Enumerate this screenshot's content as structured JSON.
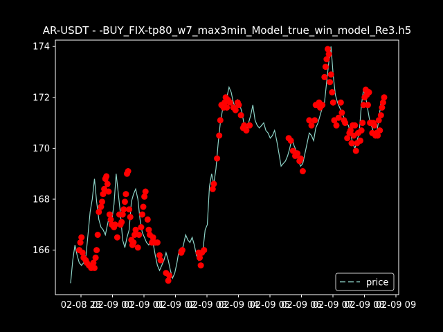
{
  "chart_data": {
    "type": "line",
    "title": "AR-USDT - -BUY_FIX-tp80_w7_max3min_Model_true_win_model_Re3.h5",
    "xlabel": "",
    "ylabel": "",
    "x_tick_labels": [
      "02-08 23",
      "02-09 00",
      "02-09 01",
      "02-09 02",
      "02-09 03",
      "02-09 04",
      "02-09 05",
      "02-09 06",
      "02-09 07",
      "02-09 08",
      "02-09 09"
    ],
    "y_ticks": [
      166,
      168,
      170,
      172,
      174
    ],
    "ylim": [
      164.25,
      174.25
    ],
    "xlim": [
      0,
      1000
    ],
    "grid": false,
    "legend": {
      "position": "lower-right",
      "entries": [
        "price"
      ]
    },
    "colors": {
      "line": "#8dd3c7",
      "markers": "#ff0000",
      "background": "#000000",
      "axes": "#ffffff"
    },
    "series": [
      {
        "name": "price",
        "points": [
          [
            0,
            164.7
          ],
          [
            4,
            165.6
          ],
          [
            8,
            166.2
          ],
          [
            12,
            165.8
          ],
          [
            16,
            165.5
          ],
          [
            20,
            165.4
          ],
          [
            24,
            165.5
          ],
          [
            28,
            165.7
          ],
          [
            32,
            166.6
          ],
          [
            36,
            167.5
          ],
          [
            40,
            168.0
          ],
          [
            44,
            168.8
          ],
          [
            48,
            167.9
          ],
          [
            52,
            167.2
          ],
          [
            56,
            166.9
          ],
          [
            60,
            166.8
          ],
          [
            64,
            166.6
          ],
          [
            68,
            167.0
          ],
          [
            72,
            167.4
          ],
          [
            76,
            167.2
          ],
          [
            80,
            167.8
          ],
          [
            84,
            169.0
          ],
          [
            88,
            168.2
          ],
          [
            92,
            167.4
          ],
          [
            96,
            166.4
          ],
          [
            100,
            166.1
          ],
          [
            104,
            166.5
          ],
          [
            108,
            166.8
          ],
          [
            112,
            167.9
          ],
          [
            116,
            168.2
          ],
          [
            120,
            168.4
          ],
          [
            124,
            168.0
          ],
          [
            128,
            167.2
          ],
          [
            132,
            166.7
          ],
          [
            136,
            166.5
          ],
          [
            140,
            166.3
          ],
          [
            144,
            166.2
          ],
          [
            148,
            166.4
          ],
          [
            152,
            166.3
          ],
          [
            156,
            165.8
          ],
          [
            160,
            165.4
          ],
          [
            164,
            165.2
          ],
          [
            168,
            165.4
          ],
          [
            172,
            165.6
          ],
          [
            176,
            165.9
          ],
          [
            180,
            165.6
          ],
          [
            184,
            165.2
          ],
          [
            188,
            164.9
          ],
          [
            192,
            165.1
          ],
          [
            196,
            165.5
          ],
          [
            200,
            166.0
          ],
          [
            204,
            165.9
          ],
          [
            208,
            166.2
          ],
          [
            212,
            166.6
          ],
          [
            216,
            166.4
          ],
          [
            220,
            166.3
          ],
          [
            224,
            166.5
          ],
          [
            228,
            166.2
          ],
          [
            232,
            165.8
          ],
          [
            236,
            165.6
          ],
          [
            240,
            165.8
          ],
          [
            244,
            166.0
          ],
          [
            248,
            166.8
          ],
          [
            252,
            167.0
          ],
          [
            256,
            168.5
          ],
          [
            260,
            169.0
          ],
          [
            264,
            168.6
          ],
          [
            268,
            169.2
          ],
          [
            272,
            170.2
          ],
          [
            276,
            171.0
          ],
          [
            280,
            171.5
          ],
          [
            284,
            171.8
          ],
          [
            288,
            172.0
          ],
          [
            292,
            172.4
          ],
          [
            296,
            172.2
          ],
          [
            300,
            171.8
          ],
          [
            304,
            171.6
          ],
          [
            308,
            171.9
          ],
          [
            312,
            171.7
          ],
          [
            316,
            171.4
          ],
          [
            320,
            170.9
          ],
          [
            324,
            170.7
          ],
          [
            328,
            171.0
          ],
          [
            332,
            171.3
          ],
          [
            336,
            171.7
          ],
          [
            340,
            171.1
          ],
          [
            344,
            170.9
          ],
          [
            348,
            170.8
          ],
          [
            352,
            170.9
          ],
          [
            356,
            171.0
          ],
          [
            360,
            170.7
          ],
          [
            364,
            170.6
          ],
          [
            368,
            170.4
          ],
          [
            372,
            170.5
          ],
          [
            376,
            170.7
          ],
          [
            380,
            170.3
          ],
          [
            384,
            169.8
          ],
          [
            388,
            169.3
          ],
          [
            392,
            169.4
          ],
          [
            396,
            169.5
          ],
          [
            400,
            169.7
          ],
          [
            404,
            170.0
          ],
          [
            408,
            170.4
          ],
          [
            412,
            170.1
          ],
          [
            416,
            169.9
          ],
          [
            420,
            169.5
          ],
          [
            424,
            169.3
          ],
          [
            428,
            169.4
          ],
          [
            432,
            169.8
          ],
          [
            436,
            170.2
          ],
          [
            440,
            170.6
          ],
          [
            444,
            170.5
          ],
          [
            448,
            170.3
          ],
          [
            452,
            170.8
          ],
          [
            456,
            171.0
          ],
          [
            460,
            171.3
          ],
          [
            464,
            171.6
          ],
          [
            468,
            171.8
          ],
          [
            472,
            172.6
          ],
          [
            476,
            173.4
          ],
          [
            480,
            174.0
          ],
          [
            484,
            172.9
          ],
          [
            488,
            172.1
          ],
          [
            492,
            171.8
          ],
          [
            496,
            171.6
          ],
          [
            500,
            171.4
          ],
          [
            504,
            171.2
          ],
          [
            508,
            171.0
          ],
          [
            512,
            170.9
          ],
          [
            516,
            170.6
          ],
          [
            520,
            170.2
          ],
          [
            524,
            170.0
          ],
          [
            528,
            170.3
          ],
          [
            532,
            170.6
          ],
          [
            536,
            171.7
          ],
          [
            540,
            172.3
          ],
          [
            544,
            172.0
          ],
          [
            548,
            171.5
          ],
          [
            552,
            171.0
          ],
          [
            556,
            170.8
          ],
          [
            560,
            170.5
          ],
          [
            564,
            170.6
          ],
          [
            568,
            171.1
          ],
          [
            572,
            171.8
          ],
          [
            576,
            172.0
          ]
        ],
        "markers": [
          [
            16,
            166.0
          ],
          [
            18,
            166.3
          ],
          [
            20,
            166.5
          ],
          [
            22,
            165.9
          ],
          [
            24,
            165.7
          ],
          [
            28,
            165.6
          ],
          [
            30,
            165.5
          ],
          [
            34,
            165.4
          ],
          [
            38,
            165.3
          ],
          [
            42,
            165.5
          ],
          [
            44,
            165.3
          ],
          [
            46,
            165.7
          ],
          [
            48,
            166.0
          ],
          [
            50,
            166.6
          ],
          [
            52,
            167.5
          ],
          [
            56,
            167.7
          ],
          [
            58,
            167.9
          ],
          [
            60,
            168.2
          ],
          [
            62,
            168.4
          ],
          [
            64,
            168.8
          ],
          [
            66,
            168.9
          ],
          [
            68,
            168.6
          ],
          [
            70,
            168.3
          ],
          [
            72,
            167.4
          ],
          [
            74,
            167.2
          ],
          [
            76,
            167.0
          ],
          [
            80,
            166.9
          ],
          [
            82,
            167.0
          ],
          [
            86,
            166.5
          ],
          [
            90,
            167.4
          ],
          [
            92,
            167.0
          ],
          [
            94,
            167.1
          ],
          [
            96,
            167.4
          ],
          [
            98,
            167.6
          ],
          [
            100,
            167.9
          ],
          [
            102,
            168.2
          ],
          [
            104,
            169.0
          ],
          [
            106,
            169.1
          ],
          [
            108,
            167.6
          ],
          [
            110,
            167.3
          ],
          [
            112,
            166.4
          ],
          [
            114,
            166.2
          ],
          [
            116,
            166.3
          ],
          [
            118,
            166.6
          ],
          [
            120,
            166.8
          ],
          [
            124,
            166.1
          ],
          [
            126,
            166.6
          ],
          [
            130,
            166.9
          ],
          [
            132,
            167.4
          ],
          [
            134,
            167.7
          ],
          [
            136,
            168.1
          ],
          [
            138,
            168.3
          ],
          [
            142,
            167.2
          ],
          [
            144,
            166.8
          ],
          [
            146,
            166.6
          ],
          [
            150,
            166.3
          ],
          [
            152,
            166.5
          ],
          [
            156,
            166.3
          ],
          [
            160,
            166.3
          ],
          [
            164,
            165.8
          ],
          [
            166,
            165.6
          ],
          [
            176,
            165.1
          ],
          [
            180,
            164.8
          ],
          [
            182,
            165.0
          ],
          [
            204,
            165.9
          ],
          [
            206,
            166.0
          ],
          [
            236,
            165.9
          ],
          [
            238,
            165.7
          ],
          [
            240,
            165.4
          ],
          [
            242,
            165.9
          ],
          [
            246,
            166.0
          ],
          [
            262,
            168.4
          ],
          [
            264,
            168.6
          ],
          [
            270,
            169.6
          ],
          [
            274,
            170.5
          ],
          [
            276,
            171.1
          ],
          [
            278,
            171.7
          ],
          [
            282,
            171.6
          ],
          [
            284,
            171.8
          ],
          [
            286,
            172.0
          ],
          [
            288,
            171.6
          ],
          [
            290,
            171.9
          ],
          [
            294,
            171.8
          ],
          [
            300,
            171.6
          ],
          [
            304,
            171.5
          ],
          [
            308,
            171.8
          ],
          [
            310,
            171.7
          ],
          [
            314,
            171.3
          ],
          [
            318,
            170.8
          ],
          [
            320,
            170.9
          ],
          [
            324,
            170.7
          ],
          [
            330,
            170.9
          ],
          [
            402,
            170.4
          ],
          [
            406,
            170.3
          ],
          [
            410,
            169.9
          ],
          [
            414,
            169.7
          ],
          [
            418,
            169.8
          ],
          [
            422,
            169.5
          ],
          [
            424,
            169.6
          ],
          [
            428,
            169.1
          ],
          [
            440,
            171.1
          ],
          [
            444,
            170.9
          ],
          [
            450,
            171.1
          ],
          [
            452,
            171.7
          ],
          [
            458,
            171.8
          ],
          [
            460,
            171.6
          ],
          [
            464,
            171.7
          ],
          [
            468,
            172.8
          ],
          [
            470,
            173.2
          ],
          [
            472,
            173.5
          ],
          [
            474,
            173.9
          ],
          [
            476,
            173.7
          ],
          [
            478,
            172.6
          ],
          [
            480,
            172.9
          ],
          [
            482,
            172.2
          ],
          [
            484,
            171.8
          ],
          [
            486,
            171.1
          ],
          [
            490,
            170.9
          ],
          [
            494,
            171.2
          ],
          [
            498,
            171.8
          ],
          [
            500,
            171.4
          ],
          [
            504,
            171.1
          ],
          [
            506,
            171.0
          ],
          [
            510,
            170.4
          ],
          [
            514,
            170.6
          ],
          [
            516,
            170.7
          ],
          [
            518,
            170.2
          ],
          [
            520,
            170.9
          ],
          [
            522,
            170.5
          ],
          [
            524,
            170.9
          ],
          [
            526,
            169.9
          ],
          [
            528,
            170.2
          ],
          [
            530,
            170.6
          ],
          [
            534,
            170.3
          ],
          [
            536,
            170.7
          ],
          [
            538,
            171.0
          ],
          [
            540,
            171.7
          ],
          [
            542,
            172.0
          ],
          [
            544,
            172.3
          ],
          [
            546,
            172.1
          ],
          [
            548,
            171.7
          ],
          [
            550,
            172.2
          ],
          [
            552,
            171.0
          ],
          [
            554,
            171.0
          ],
          [
            556,
            170.6
          ],
          [
            558,
            171.0
          ],
          [
            560,
            170.9
          ],
          [
            562,
            170.5
          ],
          [
            564,
            170.6
          ],
          [
            566,
            170.5
          ],
          [
            568,
            171.1
          ],
          [
            570,
            170.7
          ],
          [
            572,
            171.3
          ],
          [
            574,
            171.6
          ],
          [
            576,
            171.8
          ],
          [
            578,
            172.0
          ]
        ]
      }
    ]
  }
}
